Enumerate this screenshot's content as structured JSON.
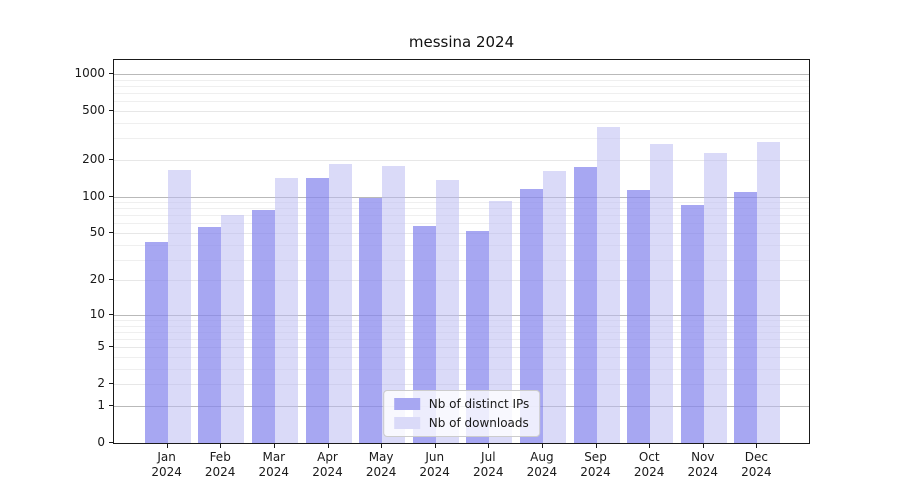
{
  "chart_data": {
    "type": "bar",
    "title": "messina 2024",
    "categories": [
      "Jan 2024",
      "Feb 2024",
      "Mar 2024",
      "Apr 2024",
      "May 2024",
      "Jun 2024",
      "Jul 2024",
      "Aug 2024",
      "Sep 2024",
      "Oct 2024",
      "Nov 2024",
      "Dec 2024"
    ],
    "series": [
      {
        "name": "Nb of distinct IPs",
        "color": "#a7a7f2",
        "values": [
          42,
          56,
          77,
          141,
          98,
          57,
          52,
          115,
          175,
          114,
          85,
          110
        ]
      },
      {
        "name": "Nb of downloads",
        "color": "#dadaf8",
        "values": [
          165,
          70,
          141,
          184,
          178,
          136,
          92,
          162,
          370,
          268,
          228,
          277
        ]
      }
    ],
    "xlabel": "",
    "ylabel": "",
    "yscale": "log1p",
    "yticks": [
      0,
      1,
      2,
      5,
      10,
      20,
      50,
      100,
      200,
      500,
      1000
    ],
    "ylim": [
      0,
      1300
    ],
    "grid": true,
    "legend_position": "lower center"
  },
  "colors": {
    "bar_distinct_ips": "#a7a7f2",
    "bar_downloads": "#dadaf8",
    "grid_decade": "#b9b9b9",
    "grid_light": "#e7e7e7",
    "spine": "#1a1a1a"
  }
}
